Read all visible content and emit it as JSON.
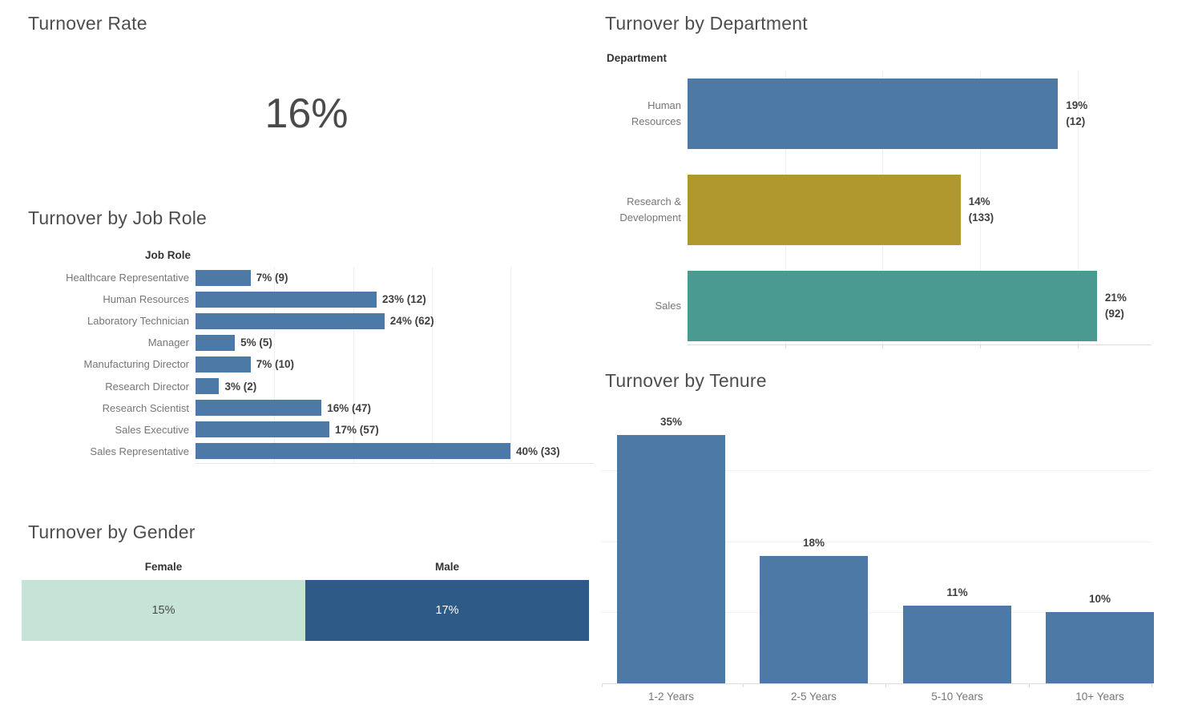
{
  "accent_colors": {
    "blue": "#4d79a7",
    "gold": "#b0982f",
    "teal": "#4a9a92",
    "mint": "#c5e3d6",
    "dark_blue": "#2d5a87",
    "title_gray": "#4e4e4e",
    "label_gray": "#767676",
    "value_dark": "#3f3f3f"
  },
  "turnover_rate": {
    "title": "Turnover Rate",
    "value": "16%"
  },
  "by_department": {
    "title": "Turnover by Department",
    "axis_label": "Department",
    "xmax_pct": 23.8,
    "bars": [
      {
        "label_lines": [
          "Human",
          "Resources"
        ],
        "pct": 19,
        "pct_label": "19%",
        "count_label": "(12)",
        "color": "#4d79a7"
      },
      {
        "label_lines": [
          "Research &",
          "Development"
        ],
        "pct": 14,
        "pct_label": "14%",
        "count_label": "(133)",
        "color": "#b0982f"
      },
      {
        "label_lines": [
          "Sales"
        ],
        "pct": 21,
        "pct_label": "21%",
        "count_label": "(92)",
        "color": "#4a9a92"
      }
    ]
  },
  "by_job_role": {
    "title": "Turnover by Job Role",
    "axis_label": "Job Role",
    "xmax_pct": 40,
    "bar_color": "#4d79a7",
    "bars": [
      {
        "label": "Healthcare Representative",
        "pct": 7,
        "value_label": "7% (9)"
      },
      {
        "label": "Human Resources",
        "pct": 23,
        "value_label": "23% (12)"
      },
      {
        "label": "Laboratory Technician",
        "pct": 24,
        "value_label": "24% (62)"
      },
      {
        "label": "Manager",
        "pct": 5,
        "value_label": "5% (5)"
      },
      {
        "label": "Manufacturing Director",
        "pct": 7,
        "value_label": "7% (10)"
      },
      {
        "label": "Research Director",
        "pct": 3,
        "value_label": "3% (2)"
      },
      {
        "label": "Research Scientist",
        "pct": 16,
        "value_label": "16% (47)"
      },
      {
        "label": "Sales Executive",
        "pct": 17,
        "value_label": "17% (57)"
      },
      {
        "label": "Sales Representative",
        "pct": 40,
        "value_label": "40% (33)"
      }
    ]
  },
  "by_gender": {
    "title": "Turnover by Gender",
    "segments": [
      {
        "label": "Female",
        "value_label": "15%",
        "pct": 15,
        "width_ratio": 0.5,
        "color": "#c5e3d6",
        "text_color": "#4b4b4b"
      },
      {
        "label": "Male",
        "value_label": "17%",
        "pct": 17,
        "width_ratio": 0.5,
        "color": "#2d5a87",
        "text_color": "#ffffff"
      }
    ]
  },
  "by_tenure": {
    "title": "Turnover by Tenure",
    "bar_color": "#4d79a7",
    "gridlines_pct": [
      10,
      20,
      30
    ],
    "bars": [
      {
        "label": "1-2 Years",
        "pct": 35,
        "value_label": "35%"
      },
      {
        "label": "2-5 Years",
        "pct": 18,
        "value_label": "18%"
      },
      {
        "label": "5-10 Years",
        "pct": 11,
        "value_label": "11%"
      },
      {
        "label": "10+ Years",
        "pct": 10,
        "value_label": "10%"
      }
    ]
  },
  "chart_data": [
    {
      "type": "table",
      "title": "Turnover Rate",
      "values": [
        [
          "16%"
        ]
      ]
    },
    {
      "type": "bar",
      "orientation": "horizontal",
      "title": "Turnover by Department",
      "ylabel": "Department",
      "xlabel": "",
      "categories": [
        "Human Resources",
        "Research & Development",
        "Sales"
      ],
      "values": [
        19,
        14,
        21
      ],
      "counts": [
        12,
        133,
        92
      ],
      "data_labels": [
        "19% (12)",
        "14% (133)",
        "21% (92)"
      ],
      "colors": [
        "#4d79a7",
        "#b0982f",
        "#4a9a92"
      ],
      "xlim": [
        0,
        24
      ],
      "grid": true,
      "legend": false
    },
    {
      "type": "bar",
      "orientation": "horizontal",
      "title": "Turnover by Job Role",
      "ylabel": "Job Role",
      "xlabel": "",
      "categories": [
        "Healthcare Representative",
        "Human Resources",
        "Laboratory Technician",
        "Manager",
        "Manufacturing Director",
        "Research Director",
        "Research Scientist",
        "Sales Executive",
        "Sales Representative"
      ],
      "values": [
        7,
        23,
        24,
        5,
        7,
        3,
        16,
        17,
        40
      ],
      "counts": [
        9,
        12,
        62,
        5,
        10,
        2,
        47,
        57,
        33
      ],
      "data_labels": [
        "7% (9)",
        "23% (12)",
        "24% (62)",
        "5% (5)",
        "7% (10)",
        "3% (2)",
        "16% (47)",
        "17% (57)",
        "40% (33)"
      ],
      "colors": [
        "#4d79a7"
      ],
      "xlim": [
        0,
        40
      ],
      "grid": true,
      "legend": false
    },
    {
      "type": "bar",
      "orientation": "horizontal-stacked",
      "title": "Turnover by Gender",
      "categories": [
        "Female",
        "Male"
      ],
      "values": [
        15,
        17
      ],
      "data_labels": [
        "15%",
        "17%"
      ],
      "colors": [
        "#c5e3d6",
        "#2d5a87"
      ],
      "legend": false
    },
    {
      "type": "bar",
      "orientation": "vertical",
      "title": "Turnover by Tenure",
      "xlabel": "",
      "ylabel": "",
      "categories": [
        "1-2 Years",
        "2-5 Years",
        "5-10 Years",
        "10+ Years"
      ],
      "values": [
        35,
        18,
        11,
        10
      ],
      "data_labels": [
        "35%",
        "18%",
        "11%",
        "10%"
      ],
      "colors": [
        "#4d79a7"
      ],
      "ylim": [
        0,
        39
      ],
      "grid": true,
      "legend": false
    }
  ]
}
